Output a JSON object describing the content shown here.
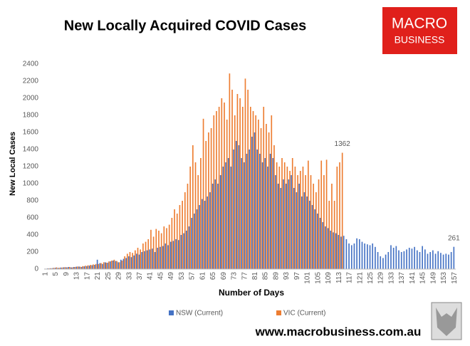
{
  "chart_data": {
    "type": "bar",
    "title": "New Locally Acquired COVID Cases",
    "logo": [
      "MACRO",
      "BUSINESS"
    ],
    "footer": "www.macrobusiness.com.au",
    "x_label": "Number of Days",
    "y_label": "New Local Cases",
    "categories": [
      1,
      null,
      null,
      null,
      5,
      null,
      null,
      null,
      9,
      null,
      null,
      null,
      13,
      null,
      null,
      null,
      17,
      null,
      null,
      null,
      21,
      null,
      null,
      null,
      25,
      null,
      null,
      null,
      29,
      null,
      null,
      null,
      33,
      null,
      null,
      null,
      37,
      null,
      null,
      null,
      41,
      null,
      null,
      null,
      45,
      null,
      null,
      null,
      49,
      null,
      null,
      null,
      53,
      null,
      null,
      null,
      57,
      null,
      null,
      null,
      61,
      null,
      null,
      null,
      65,
      null,
      null,
      null,
      69,
      null,
      null,
      null,
      73,
      null,
      null,
      null,
      77,
      null,
      null,
      null,
      81,
      null,
      null,
      null,
      85,
      null,
      null,
      null,
      89,
      null,
      null,
      null,
      93,
      null,
      null,
      null,
      97,
      null,
      null,
      null,
      101,
      null,
      null,
      null,
      105,
      null,
      null,
      null,
      109,
      null,
      null,
      null,
      113,
      null,
      null,
      null,
      117,
      null,
      null,
      null,
      121,
      null,
      null,
      null,
      125,
      null,
      null,
      null,
      129,
      null,
      null,
      null,
      133,
      null,
      null,
      null,
      137,
      null,
      null,
      null,
      141,
      null,
      null,
      null,
      145,
      null,
      null,
      null,
      149,
      null,
      null,
      null,
      153,
      null,
      null,
      null,
      157
    ],
    "series": [
      {
        "name": "NSW (Current)",
        "color": "#4472c4",
        "values": [
          5,
          8,
          10,
          12,
          15,
          14,
          18,
          20,
          22,
          25,
          20,
          25,
          28,
          30,
          25,
          32,
          35,
          40,
          45,
          50,
          110,
          70,
          60,
          80,
          75,
          90,
          100,
          95,
          80,
          110,
          120,
          130,
          150,
          140,
          160,
          180,
          170,
          200,
          210,
          220,
          230,
          240,
          200,
          250,
          260,
          270,
          300,
          280,
          320,
          330,
          350,
          340,
          400,
          420,
          450,
          500,
          600,
          650,
          700,
          750,
          820,
          800,
          850,
          900,
          1000,
          1050,
          1000,
          1100,
          1200,
          1250,
          1300,
          1200,
          1400,
          1500,
          1450,
          1300,
          1250,
          1350,
          1400,
          1550,
          1600,
          1400,
          1350,
          1250,
          1300,
          1200,
          1350,
          1300,
          1100,
          1000,
          950,
          1050,
          1000,
          1050,
          1100,
          950,
          900,
          1000,
          850,
          900,
          850,
          800,
          750,
          700,
          650,
          600,
          550,
          500,
          480,
          450,
          430,
          420,
          400,
          380,
          390,
          350,
          300,
          280,
          300,
          360,
          350,
          320,
          300,
          290,
          280,
          300,
          260,
          200,
          150,
          130,
          170,
          200,
          280,
          250,
          270,
          220,
          200,
          210,
          230,
          250,
          240,
          260,
          220,
          200,
          270,
          230,
          180,
          200,
          220,
          180,
          210,
          190,
          170,
          180,
          170,
          200,
          261
        ]
      },
      {
        "name": "VIC (Current)",
        "color": "#ed7d31",
        "values": [
          5,
          8,
          10,
          15,
          20,
          15,
          18,
          22,
          20,
          25,
          20,
          25,
          30,
          28,
          35,
          40,
          45,
          50,
          55,
          60,
          60,
          70,
          80,
          75,
          90,
          100,
          110,
          95,
          80,
          100,
          150,
          180,
          200,
          190,
          220,
          250,
          230,
          300,
          320,
          350,
          460,
          380,
          470,
          450,
          420,
          500,
          480,
          520,
          600,
          700,
          650,
          750,
          800,
          900,
          1000,
          1200,
          1450,
          1250,
          1100,
          1300,
          1760,
          1500,
          1600,
          1650,
          1800,
          1850,
          1900,
          2000,
          1950,
          1750,
          2290,
          2100,
          1800,
          2050,
          2000,
          1900,
          2230,
          2100,
          1900,
          1850,
          1800,
          1750,
          1650,
          1900,
          1700,
          1600,
          1800,
          1450,
          1250,
          1200,
          1300,
          1250,
          1200,
          1150,
          1300,
          1200,
          1100,
          1150,
          1200,
          1100,
          1270,
          1100,
          1000,
          900,
          1050,
          1270,
          1100,
          1280,
          800,
          1000,
          800,
          1200,
          1250,
          1362,
          null,
          null,
          null,
          null,
          null,
          null,
          null,
          null,
          null,
          null,
          null,
          null,
          null,
          null,
          null,
          null,
          null,
          null,
          null,
          null,
          null,
          null,
          null,
          null,
          null,
          null,
          null,
          null,
          null,
          null,
          null,
          null,
          null,
          null,
          null,
          null,
          null,
          null,
          null,
          null,
          null,
          null,
          null
        ]
      }
    ],
    "ylim": [
      0,
      2400
    ],
    "yticks": [
      0,
      200,
      400,
      600,
      800,
      1000,
      1200,
      1400,
      1600,
      1800,
      2000,
      2200,
      2400
    ],
    "legend": "bottom",
    "grid": false
  }
}
